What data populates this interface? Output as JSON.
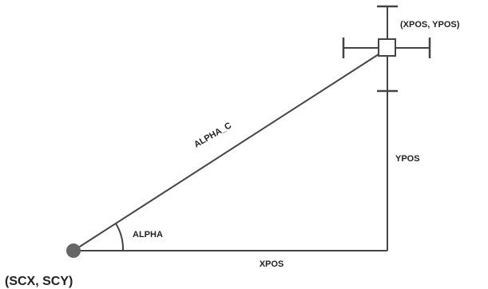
{
  "labels": {
    "hypotenuse": "ALPHA_C",
    "angle": "ALPHA",
    "horizontal": "XPOS",
    "vertical": "YPOS",
    "origin": "(SCX, SCY)",
    "target": "(XPOS, YPOS)"
  },
  "colors": {
    "line": "#444444",
    "origin_dot": "#666666",
    "text": "#222222"
  }
}
